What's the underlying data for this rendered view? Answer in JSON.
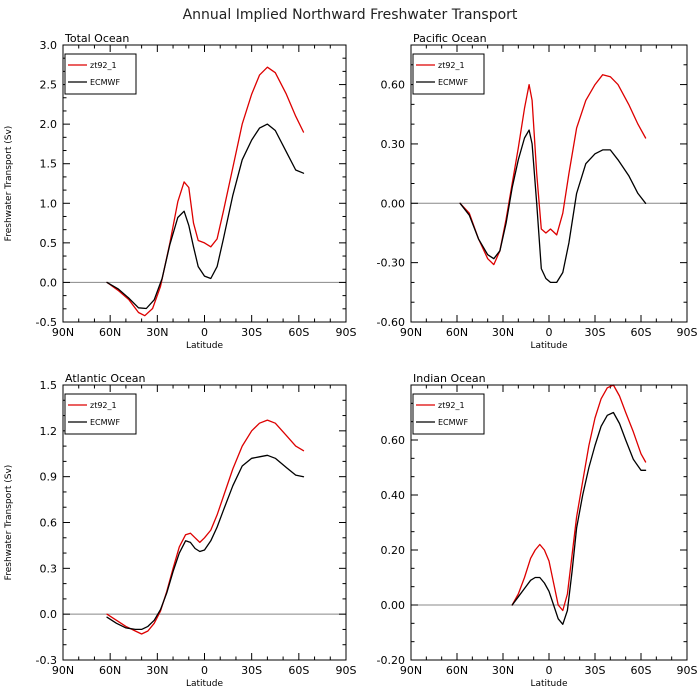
{
  "title": "Annual Implied Northward Freshwater Transport",
  "chart_data": [
    {
      "type": "line",
      "panel_title": "Total Ocean",
      "xlabel": "Latitude",
      "ylabel": "Freshwater Transport (Sv)",
      "xlim": [
        -90,
        90
      ],
      "ylim": [
        -0.5,
        3.0
      ],
      "xticks": [
        -90,
        -60,
        -30,
        0,
        30,
        60,
        90
      ],
      "xtick_labels": [
        "90N",
        "60N",
        "30N",
        "0",
        "30S",
        "60S",
        "90S"
      ],
      "yticks": [
        -0.5,
        0.0,
        0.5,
        1.0,
        1.5,
        2.0,
        2.5,
        3.0
      ],
      "ytick_labels": [
        "-0.5",
        "0.0",
        "0.5",
        "1.0",
        "1.5",
        "2.0",
        "2.5",
        "3.0"
      ],
      "zero_line": true,
      "series": [
        {
          "name": "zt92_1",
          "color": "#dd0000",
          "x": [
            -62,
            -55,
            -48,
            -42,
            -38,
            -33,
            -28,
            -22,
            -17,
            -13,
            -10,
            -7,
            -4,
            0,
            4,
            8,
            12,
            18,
            24,
            30,
            35,
            40,
            45,
            52,
            58,
            63
          ],
          "y": [
            0.0,
            -0.1,
            -0.22,
            -0.38,
            -0.42,
            -0.33,
            -0.05,
            0.5,
            1.02,
            1.27,
            1.2,
            0.75,
            0.53,
            0.5,
            0.45,
            0.55,
            0.9,
            1.45,
            2.0,
            2.38,
            2.62,
            2.72,
            2.65,
            2.38,
            2.1,
            1.9
          ]
        },
        {
          "name": "ECMWF",
          "color": "#000000",
          "x": [
            -62,
            -55,
            -48,
            -42,
            -37,
            -32,
            -27,
            -22,
            -17,
            -13,
            -10,
            -7,
            -4,
            0,
            4,
            8,
            12,
            18,
            24,
            30,
            35,
            40,
            45,
            52,
            58,
            63
          ],
          "y": [
            0.0,
            -0.08,
            -0.2,
            -0.32,
            -0.33,
            -0.22,
            0.05,
            0.48,
            0.82,
            0.9,
            0.72,
            0.45,
            0.2,
            0.08,
            0.05,
            0.2,
            0.55,
            1.1,
            1.55,
            1.8,
            1.95,
            2.0,
            1.92,
            1.65,
            1.42,
            1.38
          ]
        }
      ]
    },
    {
      "type": "line",
      "panel_title": "Pacific Ocean",
      "xlabel": "Latitude",
      "ylabel": "",
      "xlim": [
        -90,
        90
      ],
      "ylim": [
        -0.6,
        0.8
      ],
      "xticks": [
        -90,
        -60,
        -30,
        0,
        30,
        60,
        90
      ],
      "xtick_labels": [
        "90N",
        "60N",
        "30N",
        "0",
        "30S",
        "60S",
        "90S"
      ],
      "yticks": [
        -0.6,
        -0.3,
        0.0,
        0.3,
        0.6
      ],
      "ytick_labels": [
        "-0.60",
        "-0.30",
        "0.00",
        "0.30",
        "0.60"
      ],
      "zero_line": true,
      "series": [
        {
          "name": "zt92_1",
          "color": "#dd0000",
          "x": [
            -58,
            -52,
            -46,
            -40,
            -36,
            -32,
            -28,
            -24,
            -20,
            -16,
            -13,
            -11,
            -8,
            -5,
            -2,
            1,
            5,
            9,
            13,
            18,
            24,
            30,
            35,
            40,
            45,
            52,
            58,
            63
          ],
          "y": [
            0.0,
            -0.05,
            -0.18,
            -0.28,
            -0.31,
            -0.24,
            -0.08,
            0.1,
            0.28,
            0.48,
            0.6,
            0.52,
            0.15,
            -0.13,
            -0.15,
            -0.13,
            -0.16,
            -0.05,
            0.15,
            0.38,
            0.52,
            0.6,
            0.65,
            0.64,
            0.6,
            0.5,
            0.4,
            0.33
          ]
        },
        {
          "name": "ECMWF",
          "color": "#000000",
          "x": [
            -58,
            -52,
            -46,
            -40,
            -36,
            -32,
            -28,
            -24,
            -20,
            -16,
            -13,
            -11,
            -8,
            -5,
            -2,
            1,
            5,
            9,
            13,
            18,
            24,
            30,
            35,
            40,
            45,
            52,
            58,
            63
          ],
          "y": [
            0.0,
            -0.06,
            -0.18,
            -0.26,
            -0.28,
            -0.24,
            -0.1,
            0.08,
            0.22,
            0.33,
            0.37,
            0.3,
            0.0,
            -0.33,
            -0.38,
            -0.4,
            -0.4,
            -0.35,
            -0.2,
            0.05,
            0.2,
            0.25,
            0.27,
            0.27,
            0.22,
            0.14,
            0.05,
            0.0
          ]
        }
      ]
    },
    {
      "type": "line",
      "panel_title": "Atlantic Ocean",
      "xlabel": "Latitude",
      "ylabel": "Freshwater Transport (Sv)",
      "xlim": [
        -90,
        90
      ],
      "ylim": [
        -0.3,
        1.5
      ],
      "xticks": [
        -90,
        -60,
        -30,
        0,
        30,
        60,
        90
      ],
      "xtick_labels": [
        "90N",
        "60N",
        "30N",
        "0",
        "30S",
        "60S",
        "90S"
      ],
      "yticks": [
        -0.3,
        0.0,
        0.3,
        0.6,
        0.9,
        1.2,
        1.5
      ],
      "ytick_labels": [
        "-0.3",
        "0.0",
        "0.3",
        "0.6",
        "0.9",
        "1.2",
        "1.5"
      ],
      "zero_line": true,
      "series": [
        {
          "name": "zt92_1",
          "color": "#dd0000",
          "x": [
            -62,
            -56,
            -50,
            -44,
            -40,
            -36,
            -32,
            -28,
            -24,
            -20,
            -16,
            -12,
            -9,
            -6,
            -3,
            0,
            4,
            8,
            12,
            18,
            24,
            30,
            35,
            40,
            45,
            52,
            58,
            63
          ],
          "y": [
            0.0,
            -0.04,
            -0.08,
            -0.11,
            -0.13,
            -0.11,
            -0.06,
            0.02,
            0.15,
            0.3,
            0.44,
            0.52,
            0.53,
            0.5,
            0.47,
            0.5,
            0.55,
            0.65,
            0.77,
            0.95,
            1.1,
            1.2,
            1.25,
            1.27,
            1.25,
            1.17,
            1.1,
            1.07
          ]
        },
        {
          "name": "ECMWF",
          "color": "#000000",
          "x": [
            -62,
            -56,
            -50,
            -44,
            -40,
            -36,
            -32,
            -28,
            -24,
            -20,
            -16,
            -12,
            -9,
            -6,
            -3,
            0,
            4,
            8,
            12,
            18,
            24,
            30,
            35,
            40,
            45,
            52,
            58,
            63
          ],
          "y": [
            -0.02,
            -0.06,
            -0.09,
            -0.1,
            -0.1,
            -0.08,
            -0.04,
            0.03,
            0.14,
            0.28,
            0.4,
            0.48,
            0.47,
            0.43,
            0.41,
            0.42,
            0.48,
            0.57,
            0.68,
            0.84,
            0.97,
            1.02,
            1.03,
            1.04,
            1.02,
            0.96,
            0.91,
            0.9
          ]
        }
      ]
    },
    {
      "type": "line",
      "panel_title": "Indian Ocean",
      "xlabel": "Latitude",
      "ylabel": "",
      "xlim": [
        -90,
        90
      ],
      "ylim": [
        -0.2,
        0.8
      ],
      "xticks": [
        -90,
        -60,
        -30,
        0,
        30,
        60,
        90
      ],
      "xtick_labels": [
        "90N",
        "60N",
        "30N",
        "0",
        "30S",
        "60S",
        "90S"
      ],
      "yticks": [
        -0.2,
        0.0,
        0.2,
        0.4,
        0.6
      ],
      "ytick_labels": [
        "-0.20",
        "0.00",
        "0.20",
        "0.40",
        "0.60"
      ],
      "zero_line": true,
      "series": [
        {
          "name": "zt92_1",
          "color": "#dd0000",
          "x": [
            -24,
            -20,
            -16,
            -12,
            -9,
            -6,
            -3,
            0,
            3,
            6,
            9,
            12,
            15,
            18,
            22,
            26,
            30,
            34,
            38,
            42,
            46,
            50,
            55,
            60,
            63
          ],
          "y": [
            0.0,
            0.04,
            0.1,
            0.17,
            0.2,
            0.22,
            0.2,
            0.16,
            0.08,
            0.0,
            -0.02,
            0.04,
            0.18,
            0.32,
            0.45,
            0.58,
            0.68,
            0.75,
            0.79,
            0.8,
            0.76,
            0.7,
            0.63,
            0.55,
            0.52
          ]
        },
        {
          "name": "ECMWF",
          "color": "#000000",
          "x": [
            -24,
            -20,
            -16,
            -12,
            -9,
            -6,
            -3,
            0,
            3,
            6,
            9,
            12,
            15,
            18,
            22,
            26,
            30,
            34,
            38,
            42,
            46,
            50,
            55,
            60,
            63
          ],
          "y": [
            0.0,
            0.03,
            0.06,
            0.09,
            0.1,
            0.1,
            0.08,
            0.05,
            0.0,
            -0.05,
            -0.07,
            -0.02,
            0.12,
            0.28,
            0.4,
            0.5,
            0.58,
            0.65,
            0.69,
            0.7,
            0.66,
            0.6,
            0.53,
            0.49,
            0.49
          ]
        }
      ]
    }
  ]
}
